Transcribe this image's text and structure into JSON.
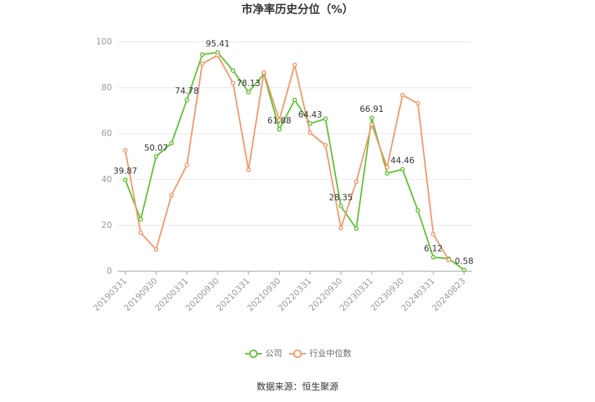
{
  "chart_data": {
    "type": "line",
    "title": "市净率历史分位（%）",
    "source": "数据来源：恒生聚源",
    "categories": [
      "20190331",
      null,
      "20190930",
      null,
      "20200331",
      null,
      "20200930",
      null,
      "20210331",
      null,
      "20210930",
      null,
      "20220331",
      null,
      "20220930",
      null,
      "20230331",
      null,
      "20230930",
      null,
      "20240331",
      null,
      "20240823"
    ],
    "series": [
      {
        "name": "公司",
        "color": "#5cc12e",
        "values": [
          39.87,
          22.6,
          50.07,
          55.8,
          74.78,
          94.5,
          95.41,
          87.5,
          78.13,
          86,
          61.88,
          74.7,
          64.43,
          66.5,
          28.35,
          18.6,
          66.91,
          42.7,
          44.46,
          26.5,
          6.12,
          5.5,
          0.58
        ],
        "value_labels": [
          "39.87",
          null,
          "50.07",
          null,
          "74.78",
          null,
          "95.41",
          null,
          "78.13",
          null,
          "61.88",
          null,
          "64.43",
          null,
          "28.35",
          null,
          "66.91",
          null,
          "44.46",
          null,
          "6.12",
          null,
          "0.58"
        ]
      },
      {
        "name": "行业中位数",
        "color": "#f79467",
        "values": [
          52.7,
          16.8,
          9.5,
          33.2,
          46.3,
          90.5,
          94.2,
          82,
          44.2,
          86.6,
          65.9,
          90,
          60.4,
          54.9,
          18.9,
          39,
          64,
          45.4,
          76.8,
          73.2,
          16.2,
          4.9,
          null
        ]
      }
    ],
    "ylim": [
      0,
      100
    ],
    "yticks": [
      0,
      20,
      40,
      60,
      80,
      100
    ],
    "grid": true
  }
}
